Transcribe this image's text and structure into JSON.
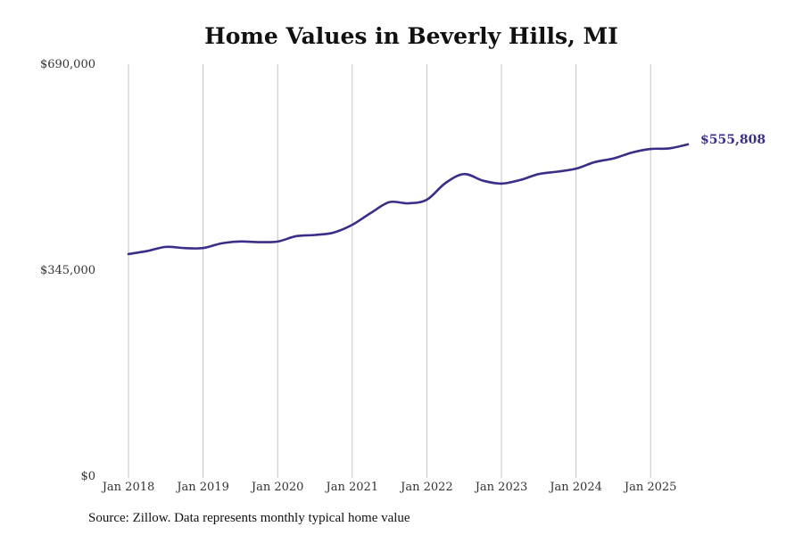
{
  "title": "Home Values in Beverly Hills, MI",
  "source_note": "Source: Zillow. Data represents monthly typical home value",
  "colors": {
    "line": "#3a2f88",
    "grid": "#c4c4c4"
  },
  "chart_data": {
    "type": "line",
    "title": "Home Values in Beverly Hills, MI",
    "xlabel": "",
    "ylabel": "",
    "grid": "vertical",
    "ylim": [
      0,
      690000
    ],
    "yticks": [
      0,
      345000,
      690000
    ],
    "ytick_labels": [
      "$0",
      "$345,000",
      "$690,000"
    ],
    "xticks": [
      "2018-01",
      "2019-01",
      "2020-01",
      "2021-01",
      "2022-01",
      "2023-01",
      "2024-01",
      "2025-01"
    ],
    "xtick_labels": [
      "Jan 2018",
      "Jan 2019",
      "Jan 2020",
      "Jan 2021",
      "Jan 2022",
      "Jan 2023",
      "Jan 2024",
      "Jan 2025"
    ],
    "end_label": "$555,808",
    "series": [
      {
        "x": [
          "2018-01",
          "2018-04",
          "2018-07",
          "2018-10",
          "2019-01",
          "2019-04",
          "2019-07",
          "2019-10",
          "2020-01",
          "2020-04",
          "2020-07",
          "2020-10",
          "2021-01",
          "2021-04",
          "2021-07",
          "2021-10",
          "2022-01",
          "2022-04",
          "2022-07",
          "2022-10",
          "2023-01",
          "2023-04",
          "2023-07",
          "2023-10",
          "2024-01",
          "2024-04",
          "2024-07",
          "2024-10",
          "2025-01",
          "2025-04",
          "2025-07"
        ],
        "values": [
          372000,
          377000,
          384000,
          382000,
          382000,
          390000,
          393000,
          392000,
          393000,
          402000,
          404000,
          408000,
          421000,
          441000,
          459000,
          457000,
          463000,
          491000,
          506000,
          495000,
          490000,
          496000,
          506000,
          510000,
          515000,
          526000,
          532000,
          542000,
          548000,
          549000,
          555808
        ]
      }
    ]
  }
}
